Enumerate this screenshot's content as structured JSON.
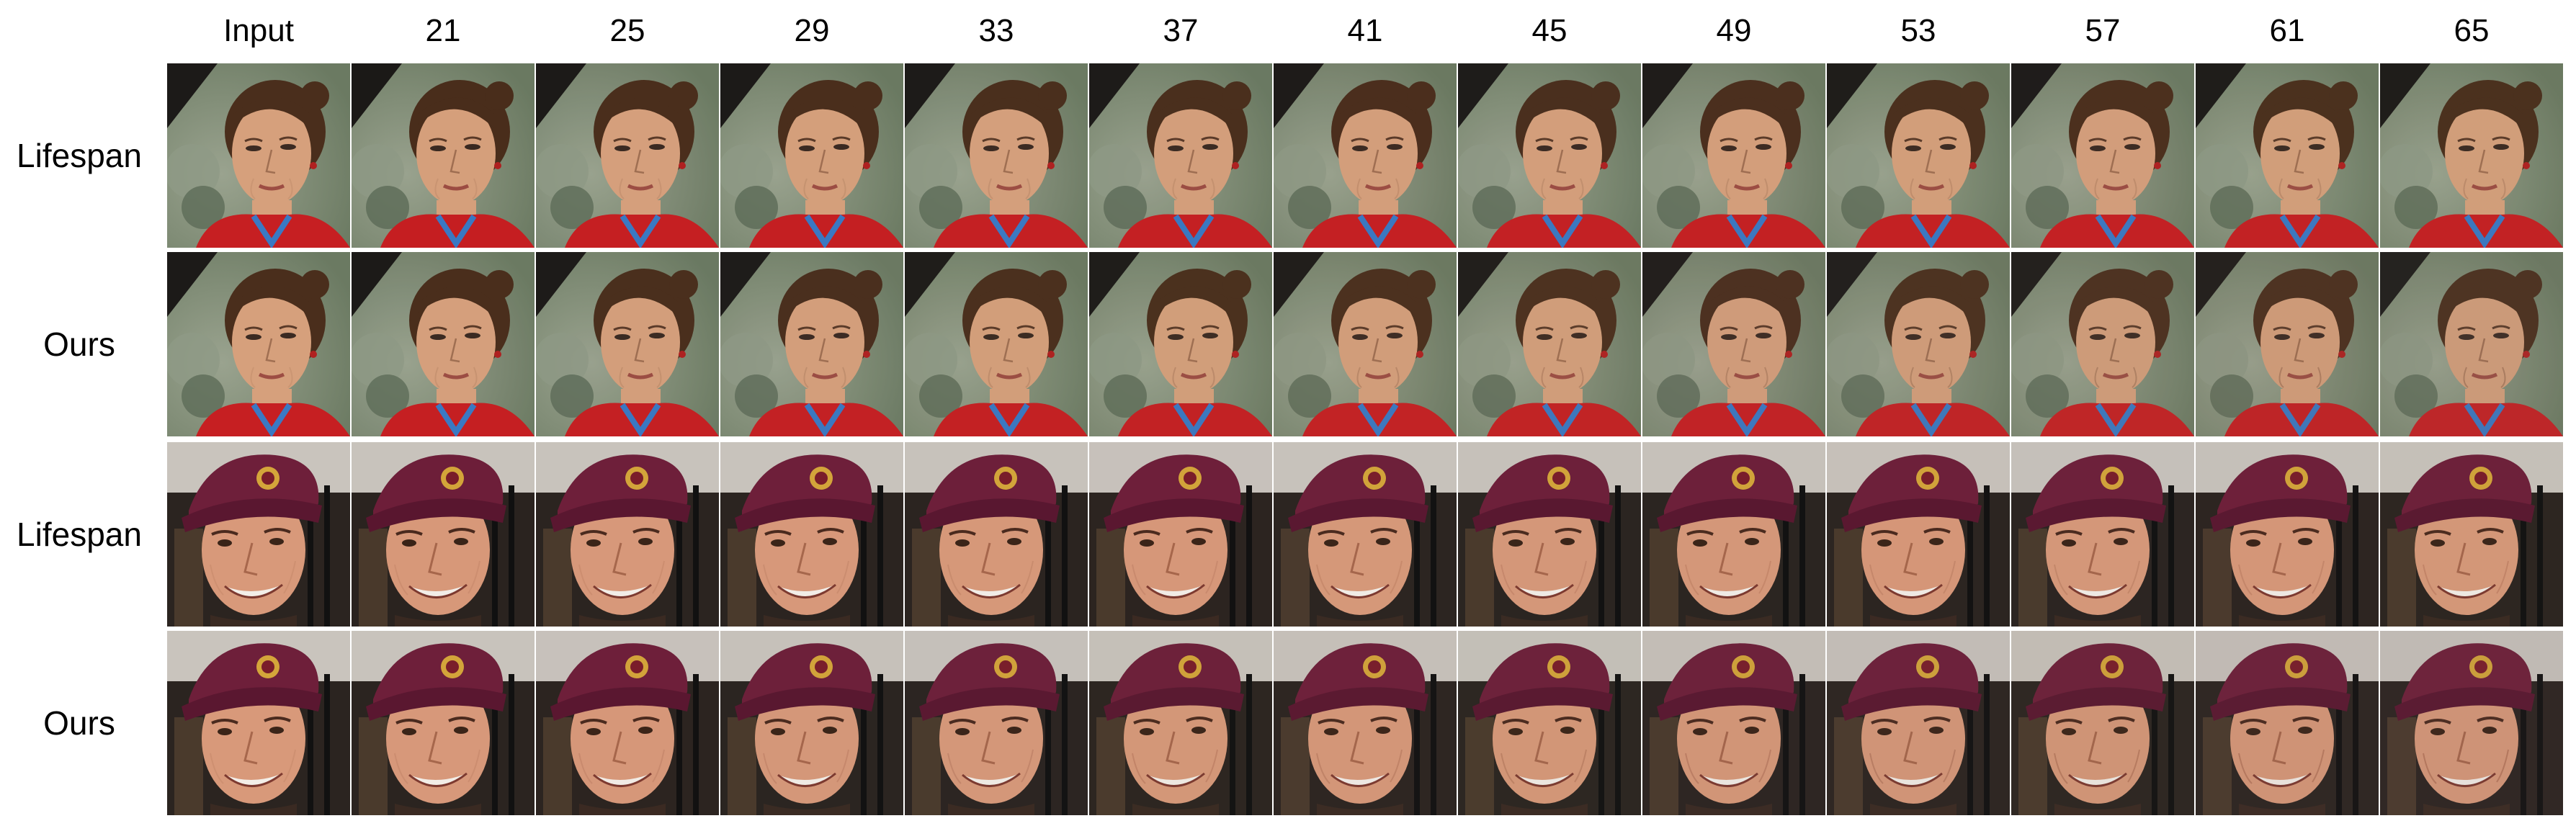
{
  "figure": {
    "columns": [
      "Input",
      "21",
      "25",
      "29",
      "33",
      "37",
      "41",
      "45",
      "49",
      "53",
      "57",
      "61",
      "65"
    ],
    "rows": [
      {
        "label": "Lifespan",
        "subject": "woman",
        "age_tint": 0.0
      },
      {
        "label": "Ours",
        "subject": "woman",
        "age_tint": 0.35
      },
      {
        "label": "Lifespan",
        "subject": "man",
        "age_tint": 0.0
      },
      {
        "label": "Ours",
        "subject": "man",
        "age_tint": 0.35
      }
    ],
    "palette": {
      "woman_bg": "#6b7a62",
      "woman_skin": "#d6a07c",
      "woman_hair": "#4a2e1c",
      "woman_shirt": "#c61f22",
      "woman_collar": "#3a79c4",
      "man_bg": "#2b2420",
      "man_skin": "#d8997a",
      "man_cap": "#6e1f3a",
      "man_capbrim": "#5a1730",
      "man_shirt": "#3a2a22"
    }
  }
}
